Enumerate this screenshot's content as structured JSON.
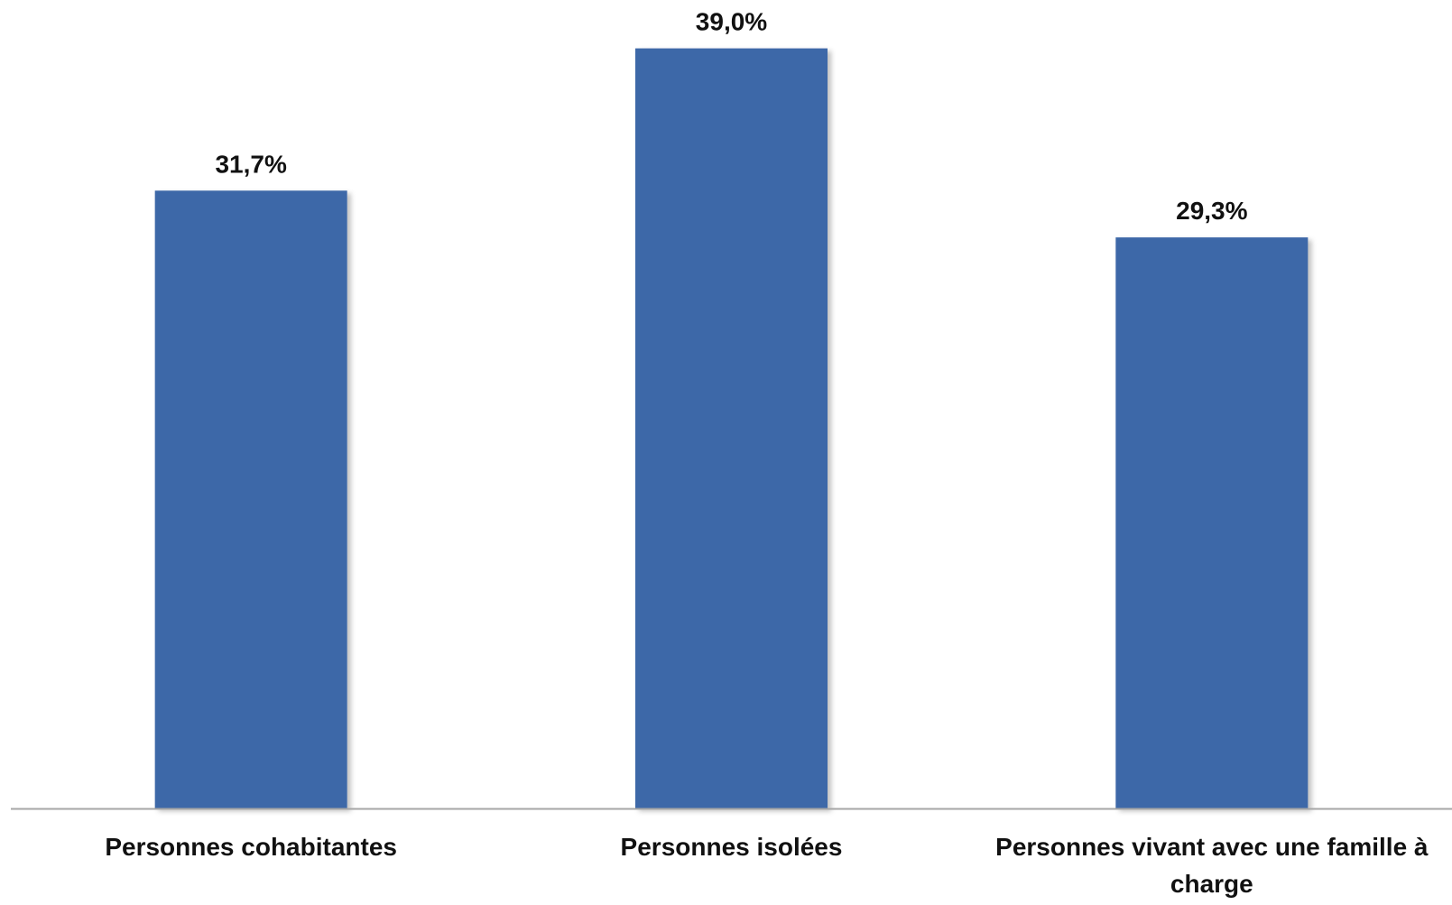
{
  "chart_data": {
    "type": "bar",
    "categories": [
      [
        "Personnes cohabitantes"
      ],
      [
        "Personnes isolées"
      ],
      [
        "Personnes vivant avec une famille à",
        "charge"
      ]
    ],
    "values": [
      31.7,
      39.0,
      29.3
    ],
    "value_labels": [
      "31,7%",
      "39,0%",
      "29,3%"
    ],
    "unit": "%",
    "ylim": [
      0,
      40
    ],
    "grid": false,
    "legend": "none",
    "colors": {
      "bar": "#3C67A8",
      "axis": "#A6A6A6",
      "text": "#111111"
    }
  }
}
